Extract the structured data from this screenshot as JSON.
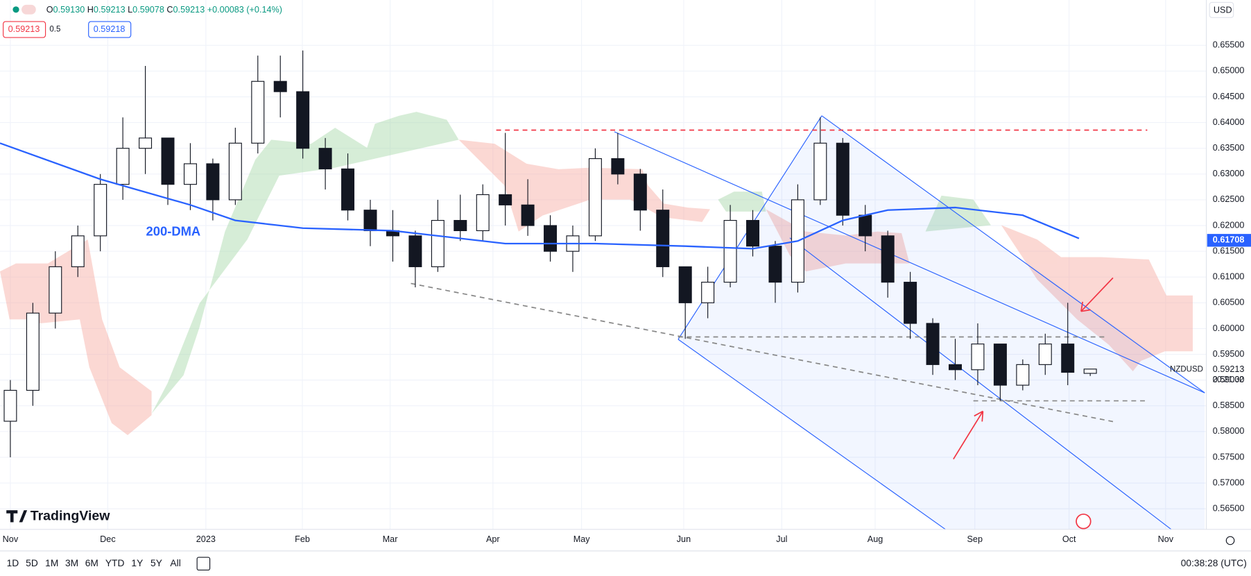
{
  "header": {
    "o": "O",
    "open": "0.59130",
    "h": "H",
    "high": "0.59213",
    "l": "L",
    "low": "0.59078",
    "c": "C",
    "close": "0.59213",
    "change": "+0.00083",
    "change_pct": "(+0.14%)",
    "sell": "0.59213",
    "spread": "0.5",
    "buy": "0.59218"
  },
  "price_axis": {
    "currency": "USD",
    "symbol": "NZDUSD",
    "last": "0.59213",
    "countdown": "20:21:32",
    "ma_last": "0.61708"
  },
  "brand": "TradingView",
  "toolbar": {
    "ranges": [
      "1D",
      "5D",
      "1M",
      "3M",
      "6M",
      "YTD",
      "1Y",
      "5Y",
      "All"
    ],
    "clock": "00:38:28 (UTC)"
  },
  "chart_data": {
    "type": "candlestick",
    "grid": true,
    "x": [
      0,
      1,
      2,
      3,
      4,
      5,
      6,
      7,
      8,
      9,
      10,
      11,
      12,
      13,
      14,
      15,
      16,
      17,
      18,
      19,
      20,
      21,
      22,
      23,
      24,
      25,
      26,
      27,
      28,
      29,
      30,
      31,
      32,
      33,
      34,
      35,
      36,
      37,
      38,
      39,
      40,
      41,
      42,
      43,
      44,
      45,
      46,
      47,
      48
    ],
    "open": [
      0.582,
      0.588,
      0.603,
      0.612,
      0.618,
      0.628,
      0.635,
      0.637,
      0.628,
      0.632,
      0.625,
      0.636,
      0.648,
      0.646,
      0.635,
      0.631,
      0.623,
      0.619,
      0.618,
      0.612,
      0.621,
      0.619,
      0.626,
      0.624,
      0.62,
      0.615,
      0.618,
      0.633,
      0.63,
      0.623,
      0.612,
      0.605,
      0.609,
      0.621,
      0.616,
      0.609,
      0.625,
      0.636,
      0.622,
      0.618,
      0.609,
      0.601,
      0.593,
      0.592,
      0.597,
      0.589,
      0.593,
      0.597,
      0.5913
    ],
    "high": [
      0.59,
      0.605,
      0.615,
      0.62,
      0.63,
      0.641,
      0.651,
      0.637,
      0.636,
      0.633,
      0.639,
      0.653,
      0.653,
      0.654,
      0.637,
      0.634,
      0.625,
      0.623,
      0.619,
      0.625,
      0.626,
      0.628,
      0.638,
      0.629,
      0.622,
      0.62,
      0.635,
      0.638,
      0.631,
      0.627,
      0.612,
      0.612,
      0.624,
      0.623,
      0.617,
      0.628,
      0.641,
      0.637,
      0.624,
      0.619,
      0.611,
      0.602,
      0.598,
      0.601,
      0.597,
      0.594,
      0.599,
      0.605,
      0.59213
    ],
    "low": [
      0.575,
      0.585,
      0.6,
      0.61,
      0.615,
      0.625,
      0.63,
      0.624,
      0.623,
      0.621,
      0.624,
      0.634,
      0.641,
      0.633,
      0.627,
      0.621,
      0.616,
      0.613,
      0.608,
      0.611,
      0.617,
      0.617,
      0.62,
      0.618,
      0.613,
      0.611,
      0.617,
      0.628,
      0.619,
      0.61,
      0.598,
      0.602,
      0.608,
      0.614,
      0.605,
      0.607,
      0.624,
      0.62,
      0.615,
      0.606,
      0.598,
      0.591,
      0.59,
      0.589,
      0.586,
      0.588,
      0.591,
      0.589,
      0.59078
    ],
    "close": [
      0.588,
      0.603,
      0.612,
      0.618,
      0.628,
      0.635,
      0.637,
      0.628,
      0.632,
      0.625,
      0.636,
      0.648,
      0.646,
      0.635,
      0.631,
      0.623,
      0.619,
      0.618,
      0.612,
      0.621,
      0.619,
      0.626,
      0.624,
      0.62,
      0.615,
      0.618,
      0.633,
      0.63,
      0.623,
      0.612,
      0.605,
      0.609,
      0.621,
      0.616,
      0.609,
      0.625,
      0.636,
      0.622,
      0.618,
      0.609,
      0.601,
      0.593,
      0.592,
      0.597,
      0.589,
      0.593,
      0.597,
      0.5915,
      0.59213
    ],
    "ma": {
      "name": "200-DMA",
      "color": "#2962ff",
      "x": [
        -0.46,
        4,
        8,
        10,
        13,
        17,
        22,
        26,
        30,
        33,
        35,
        37,
        39,
        42,
        45,
        47.5
      ],
      "values": [
        0.636,
        0.629,
        0.624,
        0.621,
        0.6195,
        0.619,
        0.6165,
        0.6165,
        0.616,
        0.6155,
        0.617,
        0.621,
        0.623,
        0.6235,
        0.622,
        0.6175
      ]
    },
    "xlim": [
      -0.46,
      53.16
    ],
    "ylim": [
      0.561,
      0.6638
    ],
    "xticks": [
      {
        "value": 0,
        "label": "Nov"
      },
      {
        "value": 4.33,
        "label": "Dec"
      },
      {
        "value": 8.69,
        "label": "2023"
      },
      {
        "value": 12.98,
        "label": "Feb"
      },
      {
        "value": 16.88,
        "label": "Mar"
      },
      {
        "value": 21.45,
        "label": "Apr"
      },
      {
        "value": 25.39,
        "label": "May"
      },
      {
        "value": 29.93,
        "label": "Jun"
      },
      {
        "value": 34.29,
        "label": "Jul"
      },
      {
        "value": 38.44,
        "label": "Aug"
      },
      {
        "value": 42.87,
        "label": "Sep"
      },
      {
        "value": 47.06,
        "label": "Oct"
      },
      {
        "value": 51.35,
        "label": "Nov"
      }
    ],
    "yticks": [
      {
        "value": 0.565,
        "label": "0.56500"
      },
      {
        "value": 0.57,
        "label": "0.57000"
      },
      {
        "value": 0.575,
        "label": "0.57500"
      },
      {
        "value": 0.58,
        "label": "0.58000"
      },
      {
        "value": 0.585,
        "label": "0.58500"
      },
      {
        "value": 0.59,
        "label": "0.59000"
      },
      {
        "value": 0.595,
        "label": "0.59500"
      },
      {
        "value": 0.6,
        "label": "0.60000"
      },
      {
        "value": 0.605,
        "label": "0.60500"
      },
      {
        "value": 0.61,
        "label": "0.61000"
      },
      {
        "value": 0.615,
        "label": "0.61500"
      },
      {
        "value": 0.62,
        "label": "0.62000"
      },
      {
        "value": 0.625,
        "label": "0.62500"
      },
      {
        "value": 0.63,
        "label": "0.63000"
      },
      {
        "value": 0.635,
        "label": "0.63500"
      },
      {
        "value": 0.64,
        "label": "0.64000"
      },
      {
        "value": 0.645,
        "label": "0.64500"
      },
      {
        "value": 0.65,
        "label": "0.65000"
      },
      {
        "value": 0.655,
        "label": "0.65500"
      }
    ]
  }
}
